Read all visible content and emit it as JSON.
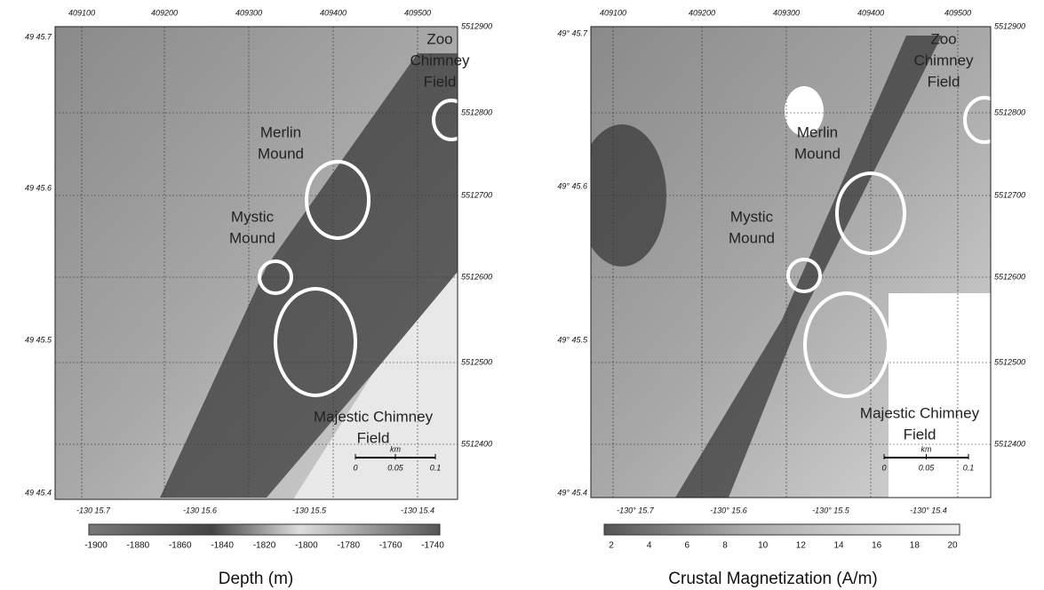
{
  "panels": [
    {
      "top_ticks": [
        "409100",
        "409200",
        "409300",
        "409400",
        "409500"
      ],
      "right_ticks": [
        "5512900",
        "5512800",
        "5512700",
        "5512600",
        "5512500",
        "5512400"
      ],
      "left_ticks": [
        "49 45.7",
        "49 45.6",
        "49 45.5",
        "49 45.4"
      ],
      "bottom_ticks": [
        "-130 15.7",
        "-130 15.6",
        "-130 15.5",
        "-130 15.4"
      ],
      "annotations": [
        {
          "lines": [
            "Zoo",
            "Chimney",
            "Field"
          ]
        },
        {
          "lines": [
            "Merlin",
            "Mound"
          ]
        },
        {
          "lines": [
            "Mystic",
            "Mound"
          ]
        },
        {
          "lines": [
            "Majestic Chimney",
            "Field"
          ]
        }
      ],
      "scale": {
        "unit": "km",
        "labels": [
          "0",
          "0.05",
          "0.1"
        ]
      },
      "colorbar_ticks": [
        -1900,
        -1880,
        -1860,
        -1840,
        -1820,
        -1800,
        -1780,
        -1760,
        -1740
      ],
      "caption": "Depth (m)"
    },
    {
      "top_ticks": [
        "409100",
        "409200",
        "409300",
        "409400",
        "409500"
      ],
      "right_ticks": [
        "5512900",
        "5512800",
        "5512700",
        "5512600",
        "5512500",
        "5512400"
      ],
      "left_ticks": [
        "49° 45.7",
        "49° 45.6",
        "49° 45.5",
        "49° 45.4"
      ],
      "bottom_ticks": [
        "-130° 15.7",
        "-130° 15.6",
        "-130° 15.5",
        "-130° 15.4"
      ],
      "annotations": [
        {
          "lines": [
            "Zoo",
            "Chimney",
            "Field"
          ]
        },
        {
          "lines": [
            "Merlin",
            "Mound"
          ]
        },
        {
          "lines": [
            "Mystic",
            "Mound"
          ]
        },
        {
          "lines": [
            "Majestic Chimney",
            "Field"
          ]
        }
      ],
      "scale": {
        "unit": "km",
        "labels": [
          "0",
          "0.05",
          "0.1"
        ]
      },
      "colorbar_ticks": [
        2,
        4,
        6,
        8,
        10,
        12,
        14,
        16,
        18,
        20
      ],
      "caption": "Crustal Magnetization (A/m)"
    }
  ]
}
